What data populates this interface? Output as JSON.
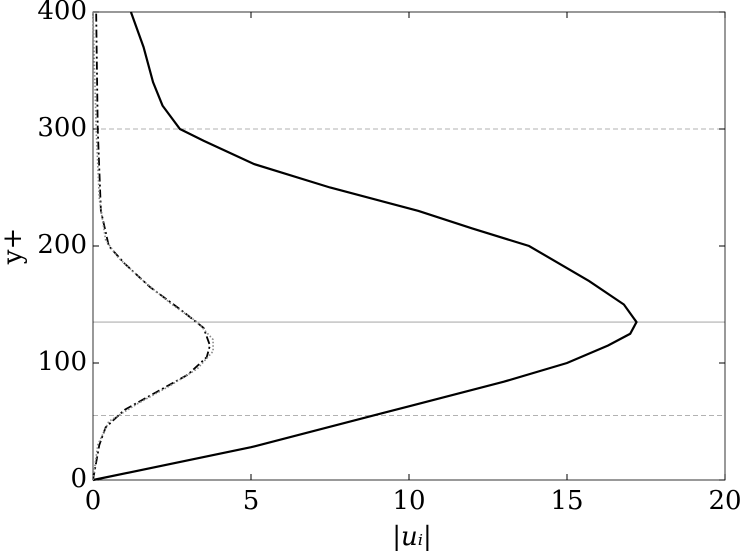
{
  "chart_data": {
    "type": "line",
    "xlabel": "|uᵢ|",
    "ylabel": "y+",
    "xlim": [
      0,
      20
    ],
    "xticks": [
      0,
      5,
      10,
      15,
      20
    ],
    "ylim": [
      0,
      400
    ],
    "yticks": [
      0,
      100,
      200,
      300,
      400
    ],
    "hlines": [
      {
        "y": 55,
        "dash": true
      },
      {
        "y": 135,
        "dash": false
      },
      {
        "y": 300,
        "dash": true
      }
    ],
    "series": [
      {
        "color": "#000000",
        "dash": "none",
        "width": 2.2,
        "x": [
          0,
          5,
          10,
          13,
          15,
          16.3,
          17,
          17.2,
          16.8,
          15.7,
          13.8,
          12,
          10.3,
          7.5,
          5.1,
          3.5,
          2.75,
          2.2,
          1.9,
          1.6,
          1.2
        ],
        "values": [
          0,
          28,
          63,
          84,
          100,
          115,
          125,
          135,
          150,
          170,
          200,
          215,
          230,
          250,
          270,
          290,
          300,
          320,
          340,
          370,
          400
        ]
      },
      {
        "color": "#000000",
        "dash": "8 3 2 3",
        "width": 1.8,
        "x": [
          0,
          0.2,
          0.4,
          1,
          2,
          3,
          3.6,
          3.7,
          3.5,
          2.8,
          1.8,
          1,
          0.5,
          0.25,
          0.15,
          0.1
        ],
        "values": [
          0,
          30,
          45,
          60,
          75,
          90,
          105,
          115,
          130,
          145,
          165,
          185,
          200,
          230,
          300,
          400
        ]
      },
      {
        "color": "#888888",
        "dash": "1.5 2",
        "width": 1.6,
        "x": [
          0,
          0.15,
          0.5,
          1.4,
          2.4,
          3.3,
          3.8,
          3.8,
          3.3,
          2.5,
          1.6,
          0.8,
          0.4,
          0.2,
          0.1,
          0
        ],
        "values": [
          0,
          30,
          50,
          65,
          80,
          95,
          110,
          120,
          135,
          150,
          170,
          190,
          205,
          240,
          300,
          400
        ]
      }
    ]
  }
}
